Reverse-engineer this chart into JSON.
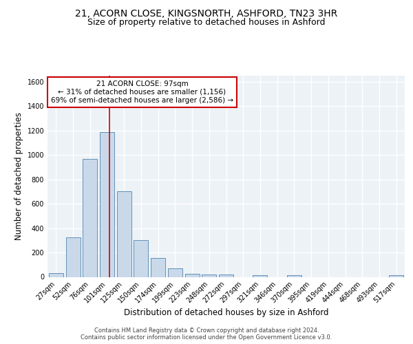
{
  "title_line1": "21, ACORN CLOSE, KINGSNORTH, ASHFORD, TN23 3HR",
  "title_line2": "Size of property relative to detached houses in Ashford",
  "xlabel": "Distribution of detached houses by size in Ashford",
  "ylabel": "Number of detached properties",
  "categories": [
    "27sqm",
    "52sqm",
    "76sqm",
    "101sqm",
    "125sqm",
    "150sqm",
    "174sqm",
    "199sqm",
    "223sqm",
    "248sqm",
    "272sqm",
    "297sqm",
    "321sqm",
    "346sqm",
    "370sqm",
    "395sqm",
    "419sqm",
    "444sqm",
    "468sqm",
    "493sqm",
    "517sqm"
  ],
  "values": [
    30,
    325,
    970,
    1190,
    700,
    300,
    155,
    72,
    28,
    18,
    18,
    0,
    12,
    0,
    12,
    0,
    0,
    0,
    0,
    0,
    14
  ],
  "bar_color": "#c9d9ea",
  "bar_edge_color": "#6090b8",
  "vline_x": 3.15,
  "vline_color": "#cc0000",
  "annotation_text": "21 ACORN CLOSE: 97sqm\n← 31% of detached houses are smaller (1,156)\n69% of semi-detached houses are larger (2,586) →",
  "annotation_box_color": "#ffffff",
  "annotation_box_edge": "#cc0000",
  "ylim": [
    0,
    1650
  ],
  "yticks": [
    0,
    200,
    400,
    600,
    800,
    1000,
    1200,
    1400,
    1600
  ],
  "footer_line1": "Contains HM Land Registry data © Crown copyright and database right 2024.",
  "footer_line2": "Contains public sector information licensed under the Open Government Licence v3.0.",
  "bg_color": "#edf2f7",
  "title_fontsize": 10,
  "subtitle_fontsize": 9,
  "axis_label_fontsize": 8.5,
  "tick_fontsize": 7,
  "annotation_fontsize": 7.5,
  "footer_fontsize": 6
}
